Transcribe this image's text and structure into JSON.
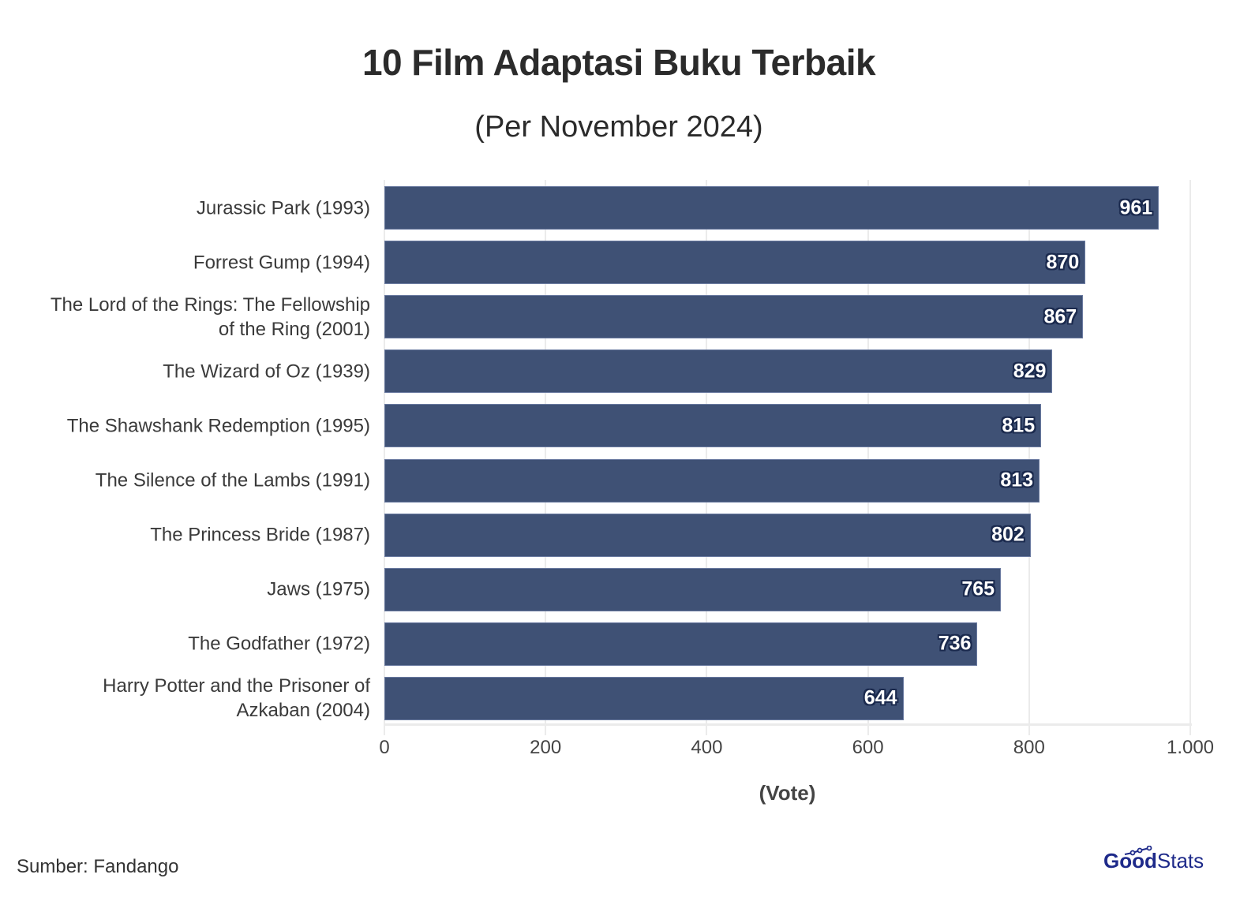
{
  "header": {
    "title": "10 Film Adaptasi Buku Terbaik",
    "subtitle": "(Per November 2024)"
  },
  "footer": {
    "source": "Sumber: Fandango",
    "logo_part1": "Good",
    "logo_part2": "Stats"
  },
  "colors": {
    "bar": "#3f5175",
    "label_outline": "#1b2a4e",
    "logo": "#1e2a8a"
  },
  "axis": {
    "xlabel": "(Vote)",
    "ticks": [
      "0",
      "200",
      "400",
      "600",
      "800",
      "1.000"
    ]
  },
  "chart_data": {
    "type": "bar",
    "orientation": "horizontal",
    "title": "10 Film Adaptasi Buku Terbaik",
    "subtitle": "(Per November 2024)",
    "categories": [
      "Jurassic Park (1993)",
      "Forrest Gump (1994)",
      "The Lord of the Rings: The Fellowship of the Ring (2001)",
      "The Wizard of Oz (1939)",
      "The Shawshank Redemption (1995)",
      "The Silence of the Lambs (1991)",
      "The Princess Bride (1987)",
      "Jaws (1975)",
      "The Godfather (1972)",
      "Harry Potter and the Prisoner of Azkaban (2004)"
    ],
    "values": [
      961,
      870,
      867,
      829,
      815,
      813,
      802,
      765,
      736,
      644
    ],
    "xlabel": "(Vote)",
    "ylabel": "",
    "xlim": [
      0,
      1000
    ],
    "xticks": [
      0,
      200,
      400,
      600,
      800,
      1000
    ],
    "grid": true,
    "data_labels": true,
    "source": "Sumber: Fandango"
  },
  "rows": [
    {
      "label_lines": [
        "Jurassic Park (1993)"
      ],
      "value": "961"
    },
    {
      "label_lines": [
        "Forrest Gump (1994)"
      ],
      "value": "870"
    },
    {
      "label_lines": [
        "The Lord of the Rings: The Fellowship",
        "of the Ring (2001)"
      ],
      "value": "867"
    },
    {
      "label_lines": [
        "The Wizard of Oz (1939)"
      ],
      "value": "829"
    },
    {
      "label_lines": [
        "The Shawshank Redemption (1995)"
      ],
      "value": "815"
    },
    {
      "label_lines": [
        "The Silence of the Lambs (1991)"
      ],
      "value": "813"
    },
    {
      "label_lines": [
        "The Princess Bride (1987)"
      ],
      "value": "802"
    },
    {
      "label_lines": [
        "Jaws (1975)"
      ],
      "value": "765"
    },
    {
      "label_lines": [
        "The Godfather (1972)"
      ],
      "value": "736"
    },
    {
      "label_lines": [
        "Harry Potter and the Prisoner of",
        "Azkaban (2004)"
      ],
      "value": "644"
    }
  ]
}
